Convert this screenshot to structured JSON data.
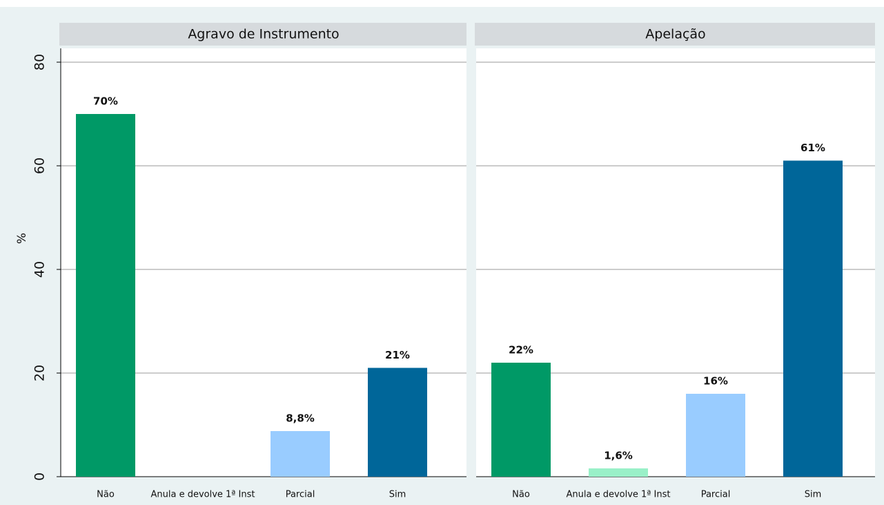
{
  "chart_data": [
    {
      "type": "bar",
      "title": "Agravo de Instrumento",
      "ylabel": "%",
      "categories": [
        "Não",
        "Anula e devolve 1ª Inst",
        "Parcial",
        "Sim"
      ],
      "values": [
        70,
        null,
        8.8,
        21
      ],
      "value_labels": [
        "70%",
        null,
        "8,8%",
        "21%"
      ],
      "colors": [
        "#009966",
        "#99f0c8",
        "#99ccff",
        "#006699"
      ],
      "ylim": [
        0,
        80
      ],
      "yticks": [
        0,
        20,
        40,
        60,
        80
      ],
      "grid": true
    },
    {
      "type": "bar",
      "title": "Apelação",
      "categories": [
        "Não",
        "Anula e devolve 1ª Inst",
        "Parcial",
        "Sim"
      ],
      "values": [
        22,
        1.6,
        16,
        61
      ],
      "value_labels": [
        "22%",
        "1,6%",
        "16%",
        "61%"
      ],
      "colors": [
        "#009966",
        "#99f0c8",
        "#99ccff",
        "#006699"
      ],
      "ylim": [
        0,
        80
      ],
      "yticks": [
        0,
        20,
        40,
        60,
        80
      ],
      "grid": true
    }
  ]
}
